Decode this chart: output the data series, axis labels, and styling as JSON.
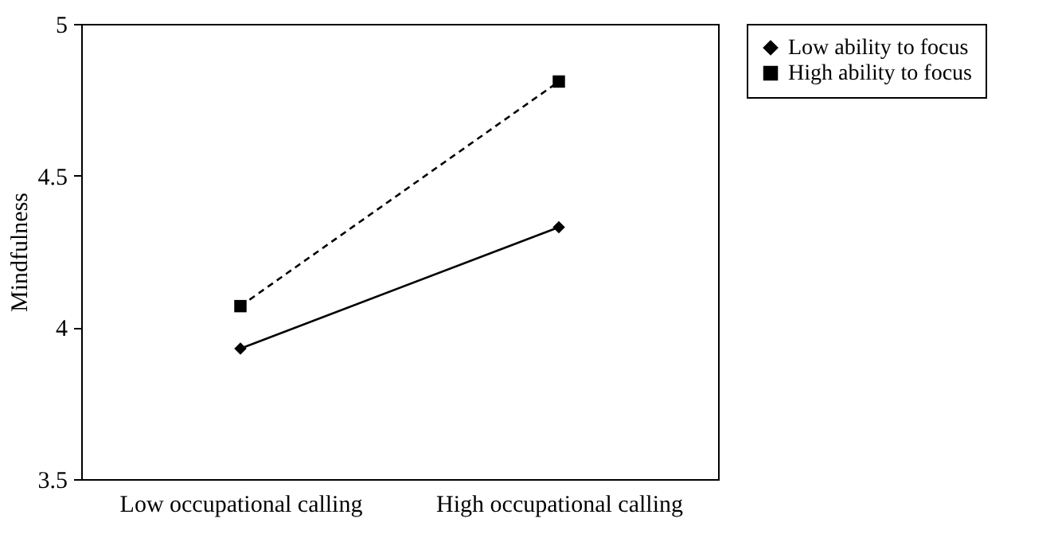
{
  "chart_data": {
    "type": "line",
    "ylabel": "Mindfulness",
    "categories": [
      "Low occupational calling",
      "High occupational calling"
    ],
    "series": [
      {
        "name": "Low ability to focus",
        "color": "#000000",
        "values": [
          3.93,
          4.33
        ],
        "marker": "diamond",
        "line_style": "solid"
      },
      {
        "name": "High ability to focus",
        "color": "#000000",
        "values": [
          4.07,
          4.81
        ],
        "marker": "square",
        "line_style": "dashed"
      }
    ],
    "ylim": [
      3.5,
      5
    ],
    "yticks": [
      3.5,
      4,
      4.5,
      5
    ],
    "grid": false,
    "legend": "right"
  }
}
